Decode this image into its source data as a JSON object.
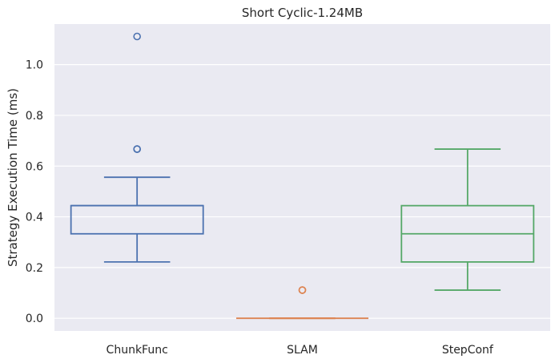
{
  "chart_data": {
    "type": "box",
    "title": "Short Cyclic-1.24MB",
    "xlabel": "",
    "ylabel": "Strategy Execution Time (ms)",
    "ylim": [
      -0.05,
      1.16
    ],
    "yticks": [
      0.0,
      0.2,
      0.4,
      0.6,
      0.8,
      1.0
    ],
    "ytick_labels": [
      "0.0",
      "0.2",
      "0.4",
      "0.6",
      "0.8",
      "1.0"
    ],
    "grid": true,
    "background": "#eaeaf2",
    "categories": [
      "ChunkFunc",
      "SLAM",
      "StepConf"
    ],
    "series": [
      {
        "category": "ChunkFunc",
        "color": "#4c72b0",
        "whisker_low": 0.222,
        "q1": 0.333,
        "median": 0.444,
        "q3": 0.444,
        "whisker_high": 0.556,
        "outliers": [
          0.667,
          0.667,
          1.111
        ]
      },
      {
        "category": "SLAM",
        "color": "#dd8452",
        "whisker_low": 0.0,
        "q1": 0.0,
        "median": 0.0,
        "q3": 0.0,
        "whisker_high": 0.0,
        "outliers": [
          0.111,
          0.111
        ]
      },
      {
        "category": "StepConf",
        "color": "#55a868",
        "whisker_low": 0.111,
        "q1": 0.222,
        "median": 0.333,
        "q3": 0.444,
        "whisker_high": 0.667,
        "outliers": []
      }
    ]
  }
}
